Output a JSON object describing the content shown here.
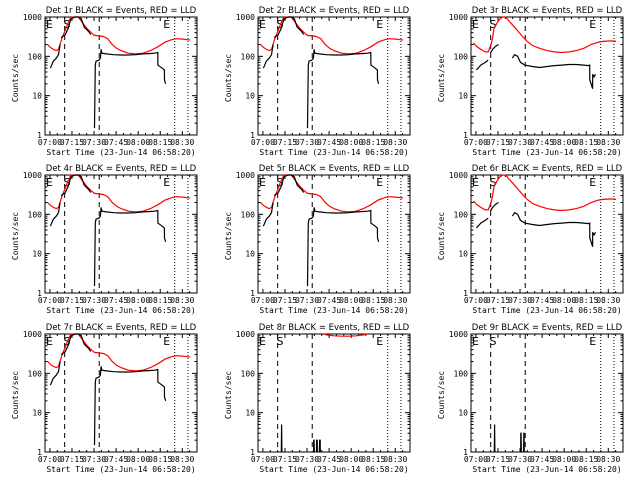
{
  "figure": {
    "ylabel": "Counts/sec",
    "xlabel": "Start Time (23-Jun-14 06:58:20)",
    "xticks": [
      "07:00",
      "07:15",
      "07:30",
      "07:45",
      "08:00",
      "08:15",
      "08:30"
    ],
    "yticks": [
      "1",
      "10",
      "100",
      "1000"
    ],
    "marker_start": "S",
    "marker_end": "E",
    "colors": {
      "events": "#000000",
      "lld": "#ff0000"
    }
  },
  "chart_data": [
    {
      "type": "line",
      "title": "Det 1r BLACK = Events, RED = LLD",
      "profile": "A",
      "xlim": [
        -1.67,
        101.67
      ],
      "ylim": [
        1,
        1000
      ],
      "yscale": "log",
      "xlabel": "Start Time (23-Jun-14 06:58:20)",
      "ylabel": "Counts/sec",
      "x_tick_minutes": [
        1.67,
        16.67,
        31.67,
        46.67,
        61.67,
        76.67,
        91.67
      ],
      "series": [
        {
          "name": "Events",
          "color": "#000000"
        },
        {
          "name": "LLD",
          "color": "#ff0000"
        }
      ]
    },
    {
      "type": "line",
      "title": "Det 2r BLACK = Events, RED = LLD",
      "profile": "A",
      "xlim": [
        -1.67,
        101.67
      ],
      "ylim": [
        1,
        1000
      ],
      "yscale": "log",
      "xlabel": "Start Time (23-Jun-14 06:58:20)",
      "ylabel": "Counts/sec",
      "x_tick_minutes": [
        1.67,
        16.67,
        31.67,
        46.67,
        61.67,
        76.67,
        91.67
      ],
      "series": [
        {
          "name": "Events",
          "color": "#000000"
        },
        {
          "name": "LLD",
          "color": "#ff0000"
        }
      ]
    },
    {
      "type": "line",
      "title": "Det 3r BLACK = Events, RED = LLD",
      "profile": "B",
      "xlim": [
        -1.67,
        101.67
      ],
      "ylim": [
        1,
        1000
      ],
      "yscale": "log",
      "xlabel": "Start Time (23-Jun-14 06:58:20)",
      "ylabel": "Counts/sec",
      "x_tick_minutes": [
        1.67,
        16.67,
        31.67,
        46.67,
        61.67,
        76.67,
        91.67
      ],
      "series": [
        {
          "name": "Events",
          "color": "#000000"
        },
        {
          "name": "LLD",
          "color": "#ff0000"
        }
      ]
    },
    {
      "type": "line",
      "title": "Det 4r BLACK = Events, RED = LLD",
      "profile": "A",
      "xlim": [
        -1.67,
        101.67
      ],
      "ylim": [
        1,
        1000
      ],
      "yscale": "log",
      "xlabel": "Start Time (23-Jun-14 06:58:20)",
      "ylabel": "Counts/sec",
      "x_tick_minutes": [
        1.67,
        16.67,
        31.67,
        46.67,
        61.67,
        76.67,
        91.67
      ],
      "series": [
        {
          "name": "Events",
          "color": "#000000"
        },
        {
          "name": "LLD",
          "color": "#ff0000"
        }
      ]
    },
    {
      "type": "line",
      "title": "Det 5r BLACK = Events, RED = LLD",
      "profile": "A",
      "xlim": [
        -1.67,
        101.67
      ],
      "ylim": [
        1,
        1000
      ],
      "yscale": "log",
      "xlabel": "Start Time (23-Jun-14 06:58:20)",
      "ylabel": "Counts/sec",
      "x_tick_minutes": [
        1.67,
        16.67,
        31.67,
        46.67,
        61.67,
        76.67,
        91.67
      ],
      "series": [
        {
          "name": "Events",
          "color": "#000000"
        },
        {
          "name": "LLD",
          "color": "#ff0000"
        }
      ]
    },
    {
      "type": "line",
      "title": "Det 6r BLACK = Events, RED = LLD",
      "profile": "B",
      "xlim": [
        -1.67,
        101.67
      ],
      "ylim": [
        1,
        1000
      ],
      "yscale": "log",
      "xlabel": "Start Time (23-Jun-14 06:58:20)",
      "ylabel": "Counts/sec",
      "x_tick_minutes": [
        1.67,
        16.67,
        31.67,
        46.67,
        61.67,
        76.67,
        91.67
      ],
      "series": [
        {
          "name": "Events",
          "color": "#000000"
        },
        {
          "name": "LLD",
          "color": "#ff0000"
        }
      ]
    },
    {
      "type": "line",
      "title": "Det 7r BLACK = Events, RED = LLD",
      "profile": "A",
      "xlim": [
        -1.67,
        101.67
      ],
      "ylim": [
        1,
        1000
      ],
      "yscale": "log",
      "xlabel": "Start Time (23-Jun-14 06:58:20)",
      "ylabel": "Counts/sec",
      "x_tick_minutes": [
        1.67,
        16.67,
        31.67,
        46.67,
        61.67,
        76.67,
        91.67
      ],
      "series": [
        {
          "name": "Events",
          "color": "#000000"
        },
        {
          "name": "LLD",
          "color": "#ff0000"
        }
      ]
    },
    {
      "type": "line",
      "title": "Det 8r BLACK = Events, RED = LLD",
      "profile": "C",
      "xlim": [
        -1.67,
        101.67
      ],
      "ylim": [
        1,
        1000
      ],
      "yscale": "log",
      "xlabel": "Start Time (23-Jun-14 06:58:20)",
      "ylabel": "Counts/sec",
      "x_tick_minutes": [
        1.67,
        16.67,
        31.67,
        46.67,
        61.67,
        76.67,
        91.67
      ],
      "series": [
        {
          "name": "Events",
          "color": "#000000"
        },
        {
          "name": "LLD",
          "color": "#ff0000"
        }
      ]
    },
    {
      "type": "line",
      "title": "Det 9r BLACK = Events, RED = LLD",
      "profile": "D",
      "xlim": [
        -1.67,
        101.67
      ],
      "ylim": [
        1,
        1000
      ],
      "yscale": "log",
      "xlabel": "Start Time (23-Jun-14 06:58:20)",
      "ylabel": "Counts/sec",
      "x_tick_minutes": [
        1.67,
        16.67,
        31.67,
        46.67,
        61.67,
        76.67,
        91.67
      ],
      "series": [
        {
          "name": "Events",
          "color": "#000000"
        },
        {
          "name": "LLD",
          "color": "#ff0000"
        }
      ]
    }
  ],
  "profiles": {
    "A": {
      "events": [
        [
          1.5,
          null
        ],
        [
          2,
          50
        ],
        [
          4,
          75
        ],
        [
          6,
          90
        ],
        [
          7.5,
          110
        ],
        [
          8.6,
          200
        ],
        [
          8.7,
          null
        ],
        [
          9.2,
          null
        ],
        [
          9.3,
          300
        ],
        [
          12,
          350
        ],
        [
          14,
          500
        ],
        [
          16,
          900
        ],
        [
          19,
          1000
        ],
        [
          21,
          1000
        ],
        [
          23,
          900
        ],
        [
          25,
          550
        ],
        [
          28,
          430
        ],
        [
          29.4,
          360
        ],
        [
          29.5,
          null
        ],
        [
          31.9,
          null
        ],
        [
          32,
          1.5
        ],
        [
          32.5,
          60
        ],
        [
          33,
          75
        ],
        [
          35,
          80
        ],
        [
          36,
          90
        ],
        [
          36.5,
          150
        ],
        [
          37,
          120
        ],
        [
          40,
          115
        ],
        [
          45,
          110
        ],
        [
          50,
          108
        ],
        [
          55,
          108
        ],
        [
          60,
          110
        ],
        [
          65,
          115
        ],
        [
          70,
          118
        ],
        [
          73,
          120
        ],
        [
          75,
          125
        ],
        [
          75.1,
          60
        ],
        [
          78,
          50
        ],
        [
          79.5,
          45
        ],
        [
          79.6,
          25
        ],
        [
          80.3,
          20
        ]
      ],
      "lld": [
        [
          0,
          200
        ],
        [
          2,
          170
        ],
        [
          4,
          150
        ],
        [
          6,
          140
        ],
        [
          7.5,
          150
        ],
        [
          8.5,
          200
        ],
        [
          10,
          300
        ],
        [
          12,
          450
        ],
        [
          14,
          700
        ],
        [
          16,
          1000
        ],
        [
          19,
          1000
        ],
        [
          21,
          1000
        ],
        [
          24,
          700
        ],
        [
          27,
          500
        ],
        [
          30,
          390
        ],
        [
          32,
          340
        ],
        [
          35,
          330
        ],
        [
          38,
          320
        ],
        [
          41,
          280
        ],
        [
          44,
          200
        ],
        [
          47,
          160
        ],
        [
          50,
          140
        ],
        [
          55,
          120
        ],
        [
          60,
          115
        ],
        [
          65,
          120
        ],
        [
          70,
          140
        ],
        [
          75,
          175
        ],
        [
          80,
          230
        ],
        [
          85,
          270
        ],
        [
          88,
          280
        ],
        [
          92,
          275
        ],
        [
          95,
          265
        ],
        [
          97,
          260
        ]
      ]
    },
    "B": {
      "events": [
        [
          1.5,
          null
        ],
        [
          2,
          45
        ],
        [
          5,
          60
        ],
        [
          8,
          70
        ],
        [
          10,
          80
        ],
        [
          10.5,
          null
        ],
        [
          11,
          null
        ],
        [
          11.5,
          120
        ],
        [
          13,
          150
        ],
        [
          15,
          180
        ],
        [
          17,
          200
        ],
        [
          17.5,
          null
        ],
        [
          26,
          null
        ],
        [
          26.5,
          90
        ],
        [
          28,
          110
        ],
        [
          30,
          100
        ],
        [
          32,
          70
        ],
        [
          35,
          60
        ],
        [
          40,
          55
        ],
        [
          45,
          52
        ],
        [
          50,
          55
        ],
        [
          55,
          58
        ],
        [
          60,
          60
        ],
        [
          65,
          62
        ],
        [
          70,
          62
        ],
        [
          75,
          60
        ],
        [
          78,
          58
        ],
        [
          79,
          60
        ],
        [
          79.1,
          25
        ],
        [
          80,
          20
        ],
        [
          81,
          15
        ],
        [
          81.1,
          35
        ],
        [
          82,
          30
        ],
        [
          83,
          35
        ]
      ],
      "lld": [
        [
          0,
          220
        ],
        [
          2,
          180
        ],
        [
          5,
          150
        ],
        [
          8,
          130
        ],
        [
          10,
          130
        ],
        [
          11,
          160
        ],
        [
          12,
          200
        ],
        [
          13,
          300
        ],
        [
          14,
          500
        ],
        [
          16,
          700
        ],
        [
          18,
          900
        ],
        [
          20,
          1000
        ],
        [
          22,
          1000
        ],
        [
          24,
          800
        ],
        [
          27,
          600
        ],
        [
          30,
          450
        ],
        [
          33,
          330
        ],
        [
          36,
          250
        ],
        [
          40,
          190
        ],
        [
          45,
          160
        ],
        [
          50,
          140
        ],
        [
          55,
          130
        ],
        [
          60,
          125
        ],
        [
          65,
          130
        ],
        [
          70,
          140
        ],
        [
          75,
          160
        ],
        [
          80,
          200
        ],
        [
          85,
          230
        ],
        [
          88,
          240
        ],
        [
          92,
          245
        ],
        [
          95,
          245
        ],
        [
          97,
          240
        ]
      ]
    },
    "C": {
      "events": [
        [
          14,
          null
        ],
        [
          14.2,
          1
        ],
        [
          14.4,
          5
        ],
        [
          14.6,
          1
        ],
        [
          14.8,
          null
        ],
        [
          36,
          null
        ],
        [
          36.1,
          1
        ],
        [
          36.2,
          2
        ],
        [
          36.5,
          2
        ],
        [
          36.6,
          1
        ],
        [
          36.7,
          null
        ],
        [
          38,
          null
        ],
        [
          38.1,
          1
        ],
        [
          38.2,
          2
        ],
        [
          38.6,
          2
        ],
        [
          38.7,
          1
        ],
        [
          38.8,
          null
        ],
        [
          40,
          null
        ],
        [
          40.1,
          1
        ],
        [
          40.2,
          2
        ],
        [
          40.6,
          2
        ],
        [
          40.7,
          1
        ],
        [
          40.8,
          null
        ]
      ],
      "lld": [
        [
          43,
          1000
        ],
        [
          45,
          950
        ],
        [
          50,
          900
        ],
        [
          55,
          880
        ],
        [
          60,
          880
        ],
        [
          65,
          900
        ],
        [
          70,
          950
        ],
        [
          72,
          1000
        ]
      ]
    },
    "D": {
      "events": [
        [
          14,
          null
        ],
        [
          14.2,
          1
        ],
        [
          14.4,
          5
        ],
        [
          14.6,
          1
        ],
        [
          14.8,
          null
        ],
        [
          32,
          null
        ],
        [
          32.1,
          1
        ],
        [
          32.2,
          3
        ],
        [
          32.4,
          3
        ],
        [
          32.5,
          1
        ],
        [
          32.6,
          null
        ],
        [
          34,
          null
        ],
        [
          34.1,
          1
        ],
        [
          34.2,
          3
        ],
        [
          34.4,
          3
        ],
        [
          34.5,
          1
        ],
        [
          34.6,
          null
        ]
      ],
      "lld": []
    }
  },
  "markers": {
    "start_min": 13.3,
    "dashed_min": [
      11.7,
      35.2
    ],
    "dotted_min": [
      86.5,
      95.5
    ]
  }
}
